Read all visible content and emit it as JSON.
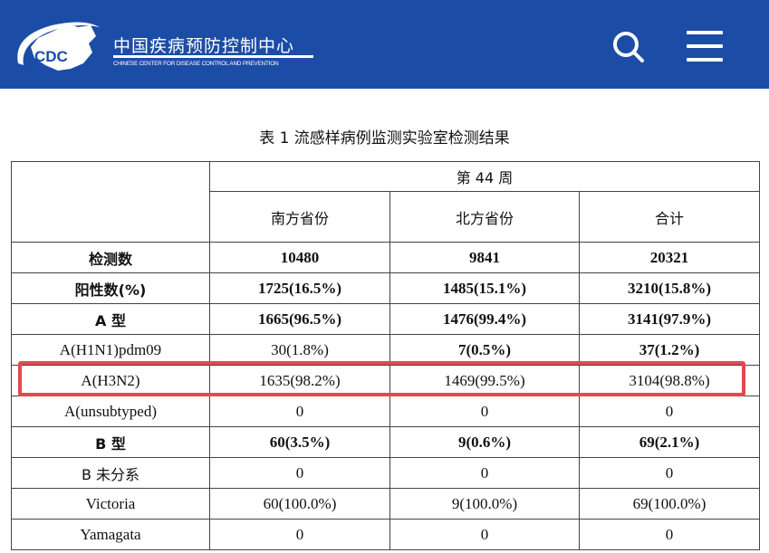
{
  "header": {
    "logo_text": "CDC",
    "org_name_cn": "中国疾病预防控制中心",
    "org_name_en": "CHINESE CENTER FOR DISEASE CONTROL AND PREVENTION",
    "bg_color": "#1c4da6",
    "icons": [
      "search-icon",
      "menu-icon"
    ]
  },
  "table_title": "表 1   流感样病例监测实验室检测结果",
  "table": {
    "week_header": "第 44 周",
    "columns": [
      "南方省份",
      "北方省份",
      "合计"
    ],
    "rows": [
      {
        "label": "检测数",
        "values": [
          "10480",
          "9841",
          "20321"
        ],
        "bold": [
          true,
          true,
          true,
          true
        ]
      },
      {
        "label": "阳性数(%)",
        "values": [
          "1725(16.5%)",
          "1485(15.1%)",
          "3210(15.8%)"
        ],
        "bold": [
          true,
          true,
          true,
          true
        ]
      },
      {
        "label": "A 型",
        "values": [
          "1665(96.5%)",
          "1476(99.4%)",
          "3141(97.9%)"
        ],
        "bold": [
          true,
          true,
          true,
          true
        ]
      },
      {
        "label": "A(H1N1)pdm09",
        "values": [
          "30(1.8%)",
          "7(0.5%)",
          "37(1.2%)"
        ],
        "bold": [
          false,
          false,
          true,
          true
        ]
      },
      {
        "label": "A(H3N2)",
        "values": [
          "1635(98.2%)",
          "1469(99.5%)",
          "3104(98.8%)"
        ],
        "bold": [
          false,
          false,
          false,
          false
        ],
        "highlighted": true
      },
      {
        "label": "A(unsubtyped)",
        "values": [
          "0",
          "0",
          "0"
        ],
        "bold": [
          false,
          false,
          false,
          false
        ]
      },
      {
        "label": "B 型",
        "values": [
          "60(3.5%)",
          "9(0.6%)",
          "69(2.1%)"
        ],
        "bold": [
          true,
          true,
          true,
          true
        ]
      },
      {
        "label": "B 未分系",
        "values": [
          "0",
          "0",
          "0"
        ],
        "bold": [
          false,
          false,
          false,
          false
        ]
      },
      {
        "label": "Victoria",
        "values": [
          "60(100.0%)",
          "9(100.0%)",
          "69(100.0%)"
        ],
        "bold": [
          false,
          false,
          false,
          false
        ]
      },
      {
        "label": "Yamagata",
        "values": [
          "0",
          "0",
          "0"
        ],
        "bold": [
          false,
          false,
          false,
          false
        ]
      }
    ],
    "highlight_color": "#e5484d"
  }
}
